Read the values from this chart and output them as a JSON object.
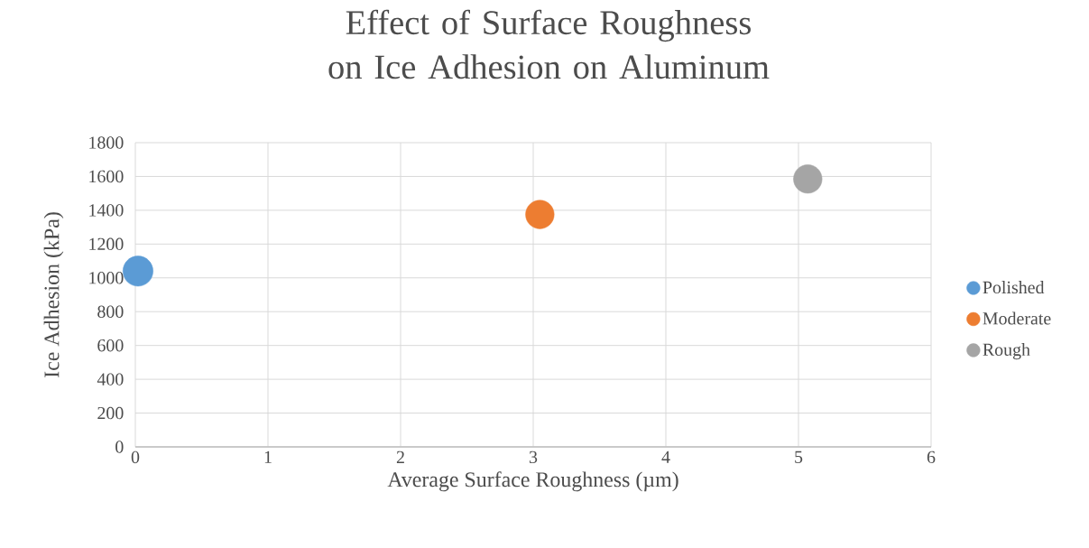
{
  "chart_data": {
    "type": "bubble",
    "title": "Effect of Surface Roughness on Ice Adhesion on Aluminum",
    "xlabel": "Average Surface Roughness (µm)",
    "ylabel": "Ice Adhesion (kPa)",
    "xlim": [
      0,
      6
    ],
    "ylim": [
      0,
      1800
    ],
    "xticks": [
      0,
      1,
      2,
      3,
      4,
      5,
      6
    ],
    "yticks": [
      0,
      200,
      400,
      600,
      800,
      1000,
      1200,
      1400,
      1600,
      1800
    ],
    "grid": true,
    "legend": "right",
    "series": [
      {
        "name": "Polished",
        "color": "#5b9bd5",
        "x": [
          0.02
        ],
        "values": [
          1040
        ],
        "sizes": [
          1
        ]
      },
      {
        "name": "Moderate",
        "color": "#ed7d31",
        "x": [
          3.05
        ],
        "values": [
          1375
        ],
        "sizes": [
          0.9
        ]
      },
      {
        "name": "Rough",
        "color": "#a5a5a5",
        "x": [
          5.07
        ],
        "values": [
          1585
        ],
        "sizes": [
          0.9
        ]
      }
    ]
  }
}
